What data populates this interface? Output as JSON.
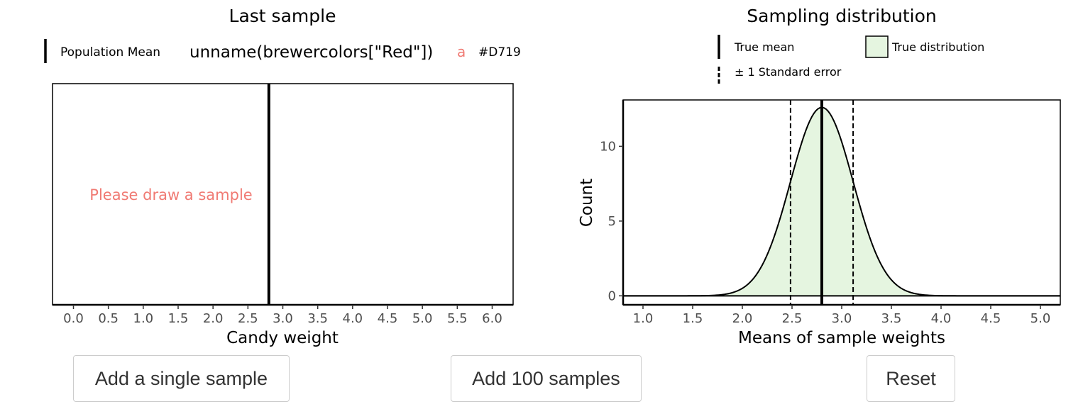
{
  "chart_data": [
    {
      "type": "histogram",
      "title": "Last sample",
      "xlabel": "Candy weight",
      "ylabel": "",
      "xlim": [
        -0.3,
        6.3
      ],
      "x_ticks": [
        "0.0",
        "0.5",
        "1.0",
        "1.5",
        "2.0",
        "2.5",
        "3.0",
        "3.5",
        "4.0",
        "4.5",
        "5.0",
        "5.5",
        "6.0"
      ],
      "population_mean": 2.8,
      "placeholder_text": "Please draw a sample",
      "legend": {
        "position": "top",
        "mean_label": "Population Mean",
        "fill_title": "unname(brewercolors[\"Red\"])",
        "fill_key": "a",
        "fill_value": "#D719"
      },
      "grid": false
    },
    {
      "type": "area",
      "title": "Sampling distribution",
      "xlabel": "Means of sample weights",
      "ylabel": "Count",
      "xlim": [
        0.8,
        5.2
      ],
      "ylim": [
        -0.6,
        13.1
      ],
      "x_ticks": [
        "1.0",
        "1.5",
        "2.0",
        "2.5",
        "3.0",
        "3.5",
        "4.0",
        "4.5",
        "5.0"
      ],
      "y_ticks": [
        "0",
        "5",
        "10"
      ],
      "true_mean": 2.8,
      "standard_error_bounds": [
        2.485,
        3.115
      ],
      "distribution": {
        "peak": 12.6,
        "sd": 0.315
      },
      "legend": {
        "position": "top",
        "mean_label": "True mean",
        "distribution_label": "True distribution",
        "se_label": "± 1 Standard error"
      },
      "grid": false
    }
  ],
  "colors": {
    "annotation": "#F07A73",
    "distribution_fill": "#E5F5E0",
    "line": "#000000",
    "tick_text": "#4D4D4D"
  },
  "buttons": {
    "single_label": "Add a single sample",
    "hundred_label": "Add 100 samples",
    "reset_label": "Reset"
  }
}
